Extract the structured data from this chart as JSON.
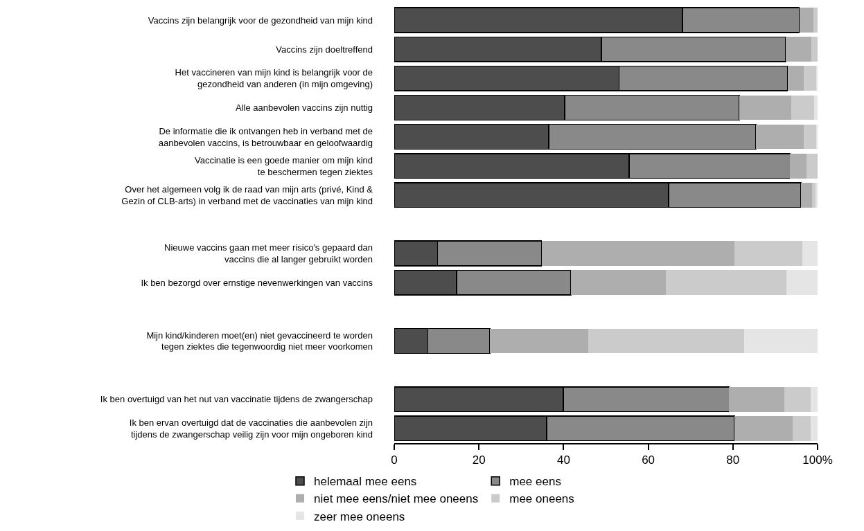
{
  "chart_data": {
    "type": "bar",
    "orientation": "horizontal",
    "stacked": true,
    "categories": [
      "Vaccins zijn belangrijk voor de gezondheid van mijn kind",
      "Vaccins zijn doeltreffend",
      "Het vaccineren van mijn kind is belangrijk voor de\ngezondheid van anderen (in mijn omgeving)",
      "Alle aanbevolen vaccins zijn nuttig",
      "De informatie die ik ontvangen heb in verband met de\naanbevolen vaccins, is betrouwbaar en geloofwaardig",
      "Vaccinatie is een goede manier om mijn kind\nte beschermen tegen ziektes",
      "Over het algemeen volg ik de raad van mijn arts (privé, Kind &\nGezin of CLB-arts) in verband met de vaccinaties van mijn kind",
      null,
      "Nieuwe vaccins gaan met meer risico's gepaard dan\nvaccins die al langer gebruikt worden",
      "Ik ben bezorgd over ernstige nevenwerkingen van vaccins",
      null,
      "Mijn kind/kinderen moet(en) niet gevaccineerd te worden\ntegen ziektes die tegenwoordig niet meer voorkomen",
      null,
      "Ik ben overtuigd van het nut van vaccinatie tijdens de zwangerschap",
      "Ik ben ervan overtuigd dat de vaccinaties die aanbevolen zijn\ntijdens de zwangerschap veilig zijn voor mijn ongeboren kind"
    ],
    "series": [
      {
        "name": "helemaal mee eens",
        "color": "#4d4d4d",
        "values": [
          68.1,
          48.9,
          53.1,
          40.3,
          36.5,
          55.5,
          64.8,
          null,
          10.2,
          14.7,
          null,
          7.9,
          null,
          39.9,
          36.0
        ]
      },
      {
        "name": "mee eens",
        "color": "#898989",
        "values": [
          27.6,
          43.6,
          39.8,
          41.2,
          48.9,
          38.0,
          31.3,
          null,
          24.6,
          27.0,
          null,
          14.7,
          null,
          39.2,
          44.4
        ]
      },
      {
        "name": "niet mee eens/niet mee oneens",
        "color": "#aeaeae",
        "values": [
          3.3,
          6.0,
          3.8,
          12.2,
          11.3,
          3.8,
          2.6,
          null,
          45.5,
          22.5,
          null,
          23.2,
          null,
          13.0,
          13.7
        ]
      },
      {
        "name": "mee oneens",
        "color": "#cbcbcb",
        "values": [
          1.0,
          1.5,
          3.1,
          5.4,
          3.1,
          2.7,
          0.8,
          null,
          16.1,
          28.5,
          null,
          36.8,
          null,
          6.3,
          4.2
        ]
      },
      {
        "name": "zeer mee oneens",
        "color": "#e5e5e5",
        "values": [
          0.0,
          0.0,
          0.2,
          0.9,
          0.2,
          0.0,
          0.5,
          null,
          3.6,
          7.3,
          null,
          17.4,
          null,
          1.6,
          1.7
        ]
      }
    ],
    "xlim": [
      0,
      100
    ],
    "xticks": [
      0,
      20,
      40,
      60,
      80,
      {
        "value": 100,
        "label": "100%"
      }
    ],
    "legend": "bottom"
  }
}
